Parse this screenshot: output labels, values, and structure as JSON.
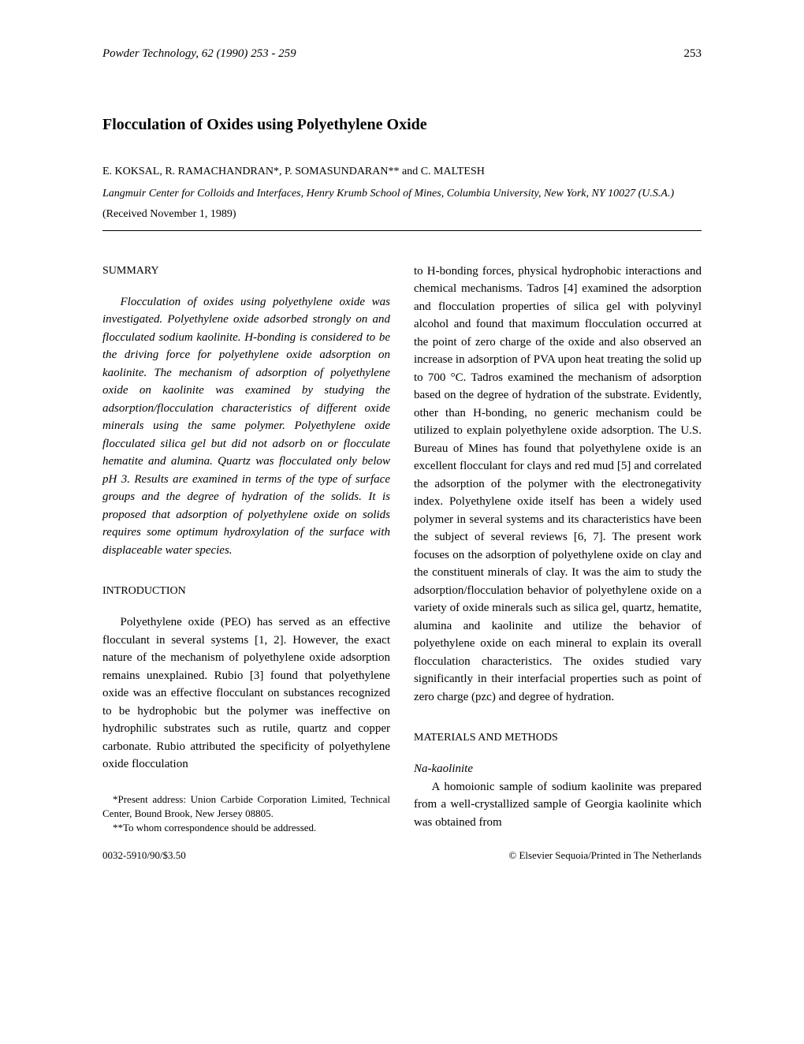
{
  "header": {
    "journal_info": "Powder Technology, 62 (1990) 253 - 259",
    "page_number": "253"
  },
  "title": "Flocculation of Oxides using Polyethylene Oxide",
  "authors": "E. KOKSAL, R. RAMACHANDRAN*, P. SOMASUNDARAN** and C. MALTESH",
  "affiliation": "Langmuir Center for Colloids and Interfaces, Henry Krumb School of Mines, Columbia University, New York, NY 10027 (U.S.A.)",
  "received": "(Received November 1, 1989)",
  "sections": {
    "summary": {
      "heading": "SUMMARY",
      "text": "Flocculation of oxides using polyethylene oxide was investigated. Polyethylene oxide adsorbed strongly on and flocculated sodium kaolinite. H-bonding is considered to be the driving force for polyethylene oxide adsorption on kaolinite. The mechanism of adsorption of polyethylene oxide on kaolinite was examined by studying the adsorption/flocculation characteristics of different oxide minerals using the same polymer. Polyethylene oxide flocculated silica gel but did not adsorb on or flocculate hematite and alumina. Quartz was flocculated only below pH 3. Results are examined in terms of the type of surface groups and the degree of hydration of the solids. It is proposed that adsorption of polyethylene oxide on solids requires some optimum hydroxylation of the surface with displaceable water species."
    },
    "introduction": {
      "heading": "INTRODUCTION",
      "text_left": "Polyethylene oxide (PEO) has served as an effective flocculant in several systems [1, 2]. However, the exact nature of the mechanism of polyethylene oxide adsorption remains unexplained. Rubio [3] found that polyethylene oxide was an effective flocculant on substances recognized to be hydrophobic but the polymer was ineffective on hydrophilic substrates such as rutile, quartz and copper carbonate. Rubio attributed the specificity of polyethylene oxide flocculation",
      "text_right": "to H-bonding forces, physical hydrophobic interactions and chemical mechanisms. Tadros [4] examined the adsorption and flocculation properties of silica gel with polyvinyl alcohol and found that maximum flocculation occurred at the point of zero charge of the oxide and also observed an increase in adsorption of PVA upon heat treating the solid up to 700 °C. Tadros examined the mechanism of adsorption based on the degree of hydration of the substrate. Evidently, other than H-bonding, no generic mechanism could be utilized to explain polyethylene oxide adsorption. The U.S. Bureau of Mines has found that polyethylene oxide is an excellent flocculant for clays and red mud [5] and correlated the adsorption of the polymer with the electronegativity index. Polyethylene oxide itself has been a widely used polymer in several systems and its characteristics have been the subject of several reviews [6, 7]. The present work focuses on the adsorption of polyethylene oxide on clay and the constituent minerals of clay. It was the aim to study the adsorption/flocculation behavior of polyethylene oxide on a variety of oxide minerals such as silica gel, quartz, hematite, alumina and kaolinite and utilize the behavior of polyethylene oxide on each mineral to explain its overall flocculation characteristics. The oxides studied vary significantly in their interfacial properties such as point of zero charge (pzc) and degree of hydration."
    },
    "materials": {
      "heading": "MATERIALS AND METHODS",
      "subsection": "Na-kaolinite",
      "text": "A homoionic sample of sodium kaolinite was prepared from a well-crystallized sample of Georgia kaolinite which was obtained from"
    }
  },
  "footnotes": {
    "note1": "*Present address: Union Carbide Corporation Limited, Technical Center, Bound Brook, New Jersey 08805.",
    "note2": "**To whom correspondence should be addressed."
  },
  "footer": {
    "left": "0032-5910/90/$3.50",
    "right": "© Elsevier Sequoia/Printed in The Netherlands"
  }
}
